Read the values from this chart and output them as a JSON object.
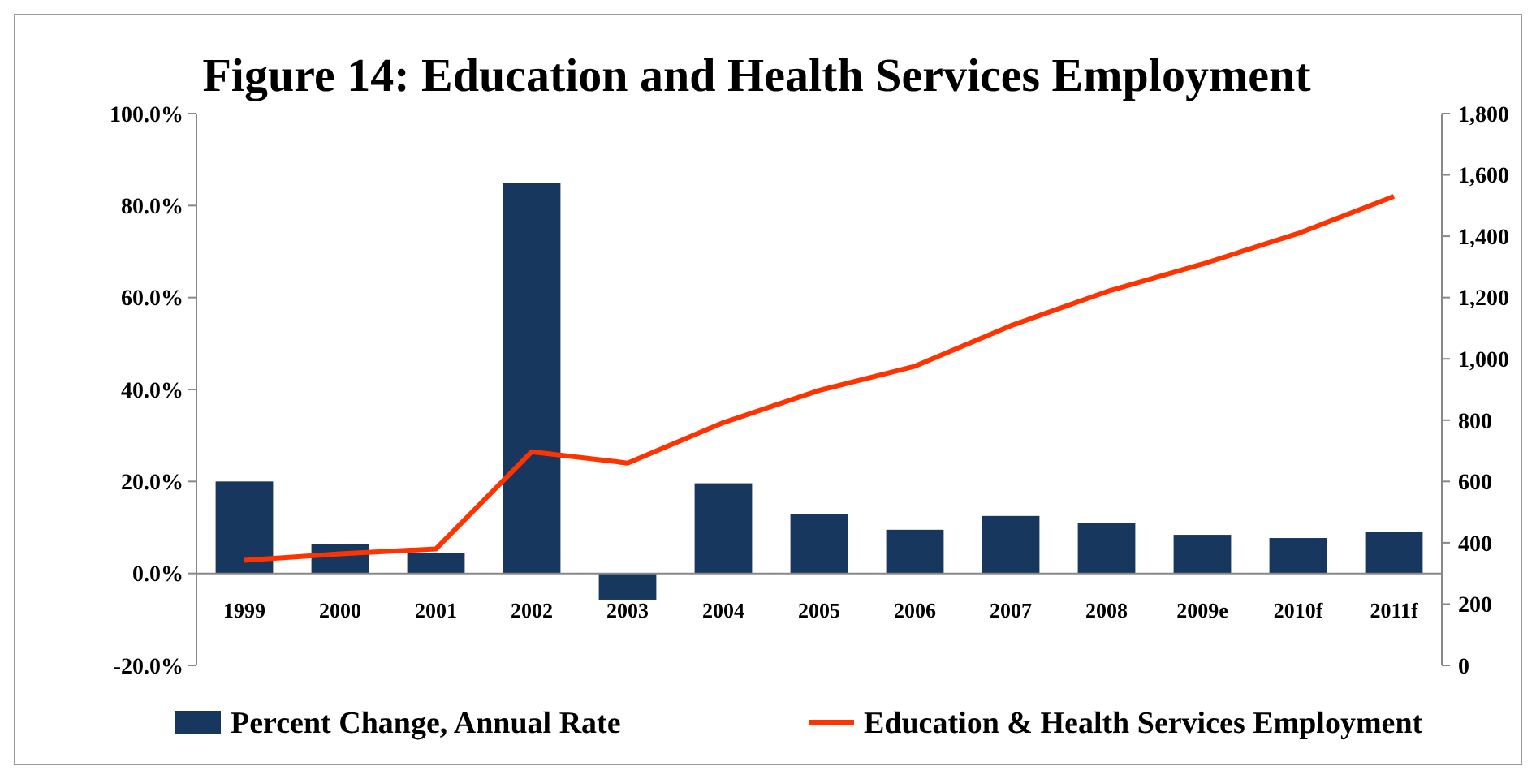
{
  "chart_data": {
    "type": "bar",
    "title": "Figure 14: Education and Health Services Employment",
    "categories": [
      "1999",
      "2000",
      "2001",
      "2002",
      "2003",
      "2004",
      "2005",
      "2006",
      "2007",
      "2008",
      "2009e",
      "2010f",
      "2011f"
    ],
    "series": [
      {
        "name": "Percent Change, Annual Rate",
        "color": "#17375e",
        "values": [
          20,
          6.3,
          4.5,
          85,
          -5.7,
          19.6,
          13,
          9.5,
          12.5,
          11,
          8.4,
          7.7,
          9
        ]
      },
      {
        "name": "Education & Health Services Employment",
        "type": "line",
        "axis": "y2",
        "color": "#ff3300",
        "values": [
          343,
          364,
          380,
          697,
          660,
          792,
          897,
          976,
          1108,
          1219,
          1309,
          1409,
          1530
        ]
      }
    ],
    "ylim": [
      -20,
      100
    ],
    "yticks": [
      {
        "value": -20,
        "label": "-20.0%"
      },
      {
        "value": 0,
        "label": "0.0%"
      },
      {
        "value": 20,
        "label": "20.0%"
      },
      {
        "value": 40,
        "label": "40.0%"
      },
      {
        "value": 60,
        "label": "60.0%"
      },
      {
        "value": 80,
        "label": "80.0%"
      },
      {
        "value": 100,
        "label": "100.0%"
      }
    ],
    "y2lim": [
      0,
      1800
    ],
    "y2ticks": [
      0,
      {
        "value": 200,
        "label": "200"
      },
      {
        "value": 400,
        "label": "400"
      },
      {
        "value": 600,
        "label": "600"
      },
      {
        "value": 800,
        "label": "800"
      },
      {
        "value": 1000,
        "label": "1,000"
      },
      {
        "value": 1200,
        "label": "1,200"
      },
      {
        "value": 1400,
        "label": "1,400"
      },
      {
        "value": 1600,
        "label": "1,600"
      },
      {
        "value": 1800,
        "label": "1,800"
      }
    ],
    "legend": "bottom",
    "grid": false
  }
}
